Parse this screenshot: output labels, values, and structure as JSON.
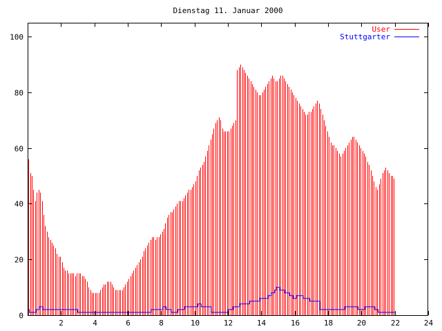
{
  "chart_data": {
    "type": "bar",
    "title": "Dienstag 11. Januar 2000",
    "xlabel": "",
    "ylabel": "",
    "xlim": [
      0,
      24
    ],
    "ylim": [
      0,
      105
    ],
    "x_ticks": [
      "2",
      "4",
      "6",
      "8",
      "10",
      "12",
      "14",
      "16",
      "18",
      "20",
      "22",
      "24"
    ],
    "y_ticks": [
      "0",
      "20",
      "40",
      "60",
      "80",
      "100"
    ],
    "grid": false,
    "legend_position": "top-right",
    "series": [
      {
        "name": "User",
        "kind": "impulse",
        "color": "#ff0000",
        "x_step_hours": 0.1,
        "values": [
          56,
          51,
          50,
          45,
          41,
          44,
          45,
          44,
          41,
          36,
          32,
          30,
          28,
          27,
          26,
          25,
          24,
          22,
          21,
          21,
          19,
          17,
          16,
          16,
          15,
          15,
          15,
          15,
          14,
          15,
          15,
          15,
          14,
          14,
          13,
          12,
          10,
          9,
          8,
          8,
          8,
          8,
          8,
          9,
          10,
          11,
          11,
          12,
          12,
          12,
          11,
          10,
          9,
          9,
          9,
          9,
          9,
          10,
          11,
          12,
          13,
          14,
          15,
          16,
          17,
          18,
          19,
          20,
          21,
          23,
          24,
          25,
          26,
          27,
          28,
          28,
          27,
          28,
          28,
          29,
          30,
          31,
          33,
          35,
          36,
          37,
          37,
          38,
          39,
          40,
          41,
          41,
          41,
          42,
          43,
          44,
          45,
          45,
          46,
          47,
          48,
          50,
          52,
          53,
          54,
          55,
          57,
          59,
          61,
          63,
          65,
          67,
          69,
          70,
          71,
          70,
          67,
          66,
          66,
          66,
          66,
          67,
          68,
          69,
          70,
          88,
          89,
          90,
          89,
          88,
          87,
          86,
          85,
          84,
          83,
          82,
          81,
          80,
          79,
          79,
          80,
          81,
          82,
          83,
          84,
          85,
          86,
          85,
          84,
          84,
          85,
          86,
          86,
          85,
          84,
          83,
          82,
          81,
          80,
          79,
          78,
          77,
          76,
          75,
          74,
          73,
          72,
          72,
          73,
          73,
          74,
          75,
          76,
          77,
          76,
          74,
          72,
          70,
          68,
          66,
          64,
          62,
          61,
          61,
          60,
          59,
          58,
          57,
          58,
          59,
          60,
          61,
          62,
          63,
          64,
          64,
          63,
          62,
          61,
          60,
          59,
          58,
          57,
          55,
          54,
          52,
          50,
          48,
          46,
          45,
          47,
          49,
          51,
          52,
          53,
          52,
          51,
          50,
          50,
          49
        ]
      },
      {
        "name": "Stuttgarter",
        "kind": "step",
        "color": "#0000ff",
        "x_step_hours": 0.1,
        "values": [
          2,
          1,
          1,
          1,
          1,
          2,
          2,
          3,
          3,
          2,
          2,
          2,
          2,
          2,
          2,
          2,
          2,
          2,
          2,
          2,
          2,
          2,
          2,
          2,
          2,
          2,
          2,
          2,
          2,
          2,
          1,
          1,
          1,
          1,
          1,
          1,
          1,
          1,
          1,
          1,
          1,
          1,
          1,
          1,
          1,
          1,
          1,
          1,
          1,
          1,
          1,
          1,
          1,
          1,
          1,
          1,
          1,
          1,
          1,
          1,
          1,
          1,
          1,
          1,
          1,
          1,
          1,
          1,
          1,
          1,
          1,
          1,
          1,
          1,
          2,
          2,
          2,
          2,
          2,
          2,
          2,
          3,
          3,
          2,
          2,
          2,
          1,
          1,
          1,
          1,
          2,
          2,
          2,
          2,
          3,
          3,
          3,
          3,
          3,
          3,
          3,
          3,
          4,
          4,
          3,
          3,
          3,
          3,
          3,
          3,
          1,
          1,
          1,
          1,
          1,
          1,
          1,
          1,
          1,
          1,
          2,
          2,
          2,
          3,
          3,
          3,
          3,
          4,
          4,
          4,
          4,
          4,
          4,
          5,
          5,
          5,
          5,
          5,
          5,
          6,
          6,
          6,
          6,
          6,
          7,
          7,
          8,
          8,
          9,
          10,
          10,
          9,
          9,
          9,
          8,
          8,
          8,
          7,
          7,
          6,
          6,
          7,
          7,
          7,
          7,
          6,
          6,
          6,
          6,
          5,
          5,
          5,
          5,
          5,
          5,
          2,
          2,
          2,
          2,
          2,
          2,
          2,
          2,
          2,
          2,
          2,
          2,
          2,
          2,
          2,
          3,
          3,
          3,
          3,
          3,
          3,
          3,
          3,
          2,
          2,
          2,
          2,
          3,
          3,
          3,
          3,
          3,
          3,
          2,
          2,
          1,
          1,
          1,
          1,
          1,
          1,
          1,
          1,
          1,
          1
        ]
      }
    ]
  }
}
